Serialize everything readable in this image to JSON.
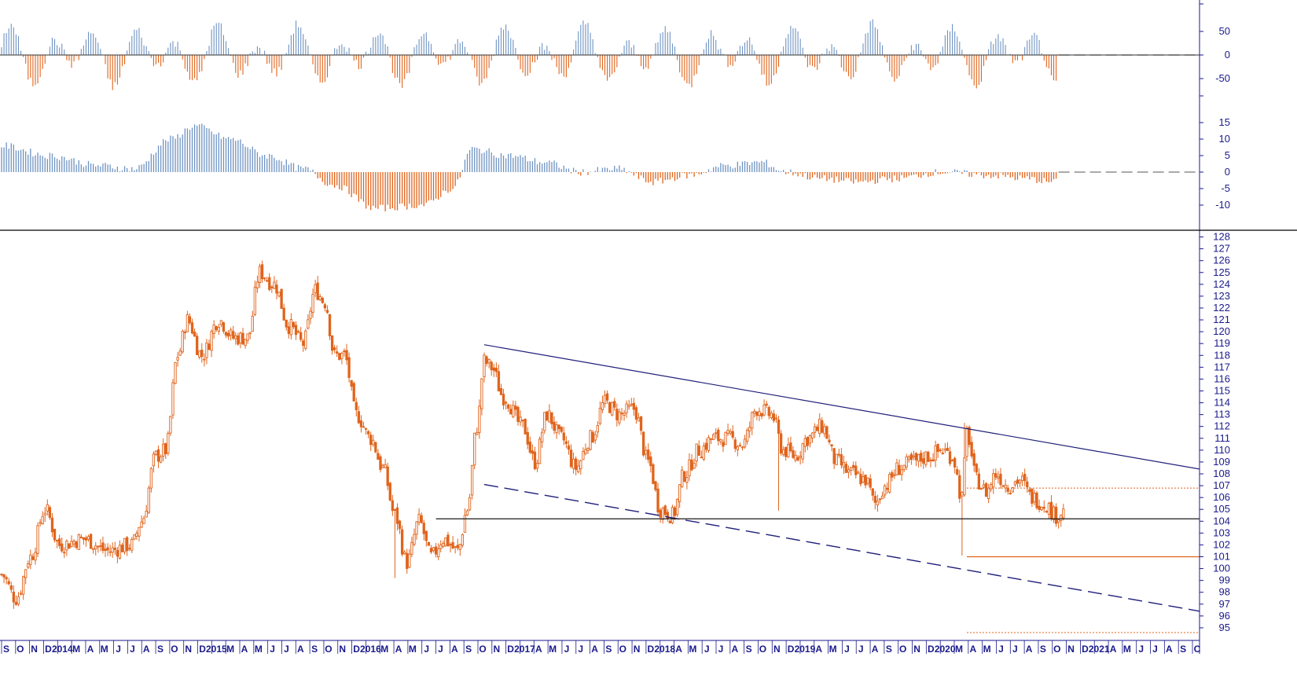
{
  "colors": {
    "up": "#6f93c2",
    "down": "#e0641c",
    "price": "#e0641c",
    "axis": "#1a1a8c",
    "trend": "#1f1f7a",
    "level": "#1a1a1a"
  },
  "chart_data": [
    {
      "type": "bar",
      "panel": "oscillator-top",
      "yticks": [
        50,
        0,
        -50
      ],
      "ylim": [
        -95,
        95
      ],
      "zero_line": "dashed",
      "notes": "two-colour histogram, positive bars blue, negative bars orange"
    },
    {
      "type": "bar",
      "panel": "oscillator-middle",
      "yticks": [
        15,
        10,
        5,
        0,
        -5,
        -10
      ],
      "ylim": [
        -14,
        18
      ],
      "zero_line": "dashed",
      "anchors": [
        {
          "t": 0,
          "v": 8
        },
        {
          "t": 20,
          "v": 5
        },
        {
          "t": 40,
          "v": 2
        },
        {
          "t": 55,
          "v": 1
        },
        {
          "t": 70,
          "v": 10
        },
        {
          "t": 80,
          "v": 14
        },
        {
          "t": 95,
          "v": 10
        },
        {
          "t": 110,
          "v": 5
        },
        {
          "t": 125,
          "v": 1
        },
        {
          "t": 138,
          "v": -4
        },
        {
          "t": 155,
          "v": -11
        },
        {
          "t": 175,
          "v": -10
        },
        {
          "t": 187,
          "v": -5
        },
        {
          "t": 195,
          "v": 7
        },
        {
          "t": 210,
          "v": 5
        },
        {
          "t": 225,
          "v": 3
        },
        {
          "t": 240,
          "v": 0
        },
        {
          "t": 255,
          "v": 1
        },
        {
          "t": 270,
          "v": -3
        },
        {
          "t": 285,
          "v": -1
        },
        {
          "t": 300,
          "v": 2
        },
        {
          "t": 315,
          "v": 3
        },
        {
          "t": 325,
          "v": 0
        },
        {
          "t": 340,
          "v": -2
        },
        {
          "t": 355,
          "v": -3
        },
        {
          "t": 370,
          "v": -2
        },
        {
          "t": 390,
          "v": 0
        },
        {
          "t": 410,
          "v": -1
        },
        {
          "t": 425,
          "v": -2
        },
        {
          "t": 435,
          "v": -3
        }
      ]
    },
    {
      "type": "candlestick",
      "panel": "price",
      "ylim": [
        94.2,
        128.5
      ],
      "yticks": [
        95,
        96,
        97,
        98,
        99,
        100,
        101,
        102,
        103,
        104,
        105,
        106,
        107,
        108,
        109,
        110,
        111,
        112,
        113,
        114,
        115,
        116,
        117,
        118,
        119,
        120,
        121,
        122,
        123,
        124,
        125,
        126,
        127,
        128
      ],
      "x_axis_labels": [
        "S",
        "O",
        "N",
        "D",
        "2014",
        "M",
        "A",
        "M",
        "J",
        "J",
        "A",
        "S",
        "O",
        "N",
        "D",
        "2015",
        "M",
        "A",
        "M",
        "J",
        "J",
        "A",
        "S",
        "O",
        "N",
        "D",
        "2016",
        "M",
        "A",
        "M",
        "J",
        "J",
        "A",
        "S",
        "O",
        "N",
        "D",
        "2017",
        "A",
        "M",
        "J",
        "J",
        "A",
        "S",
        "O",
        "N",
        "D",
        "2018",
        "A",
        "M",
        "J",
        "J",
        "A",
        "S",
        "O",
        "N",
        "D",
        "2019",
        "A",
        "M",
        "J",
        "J",
        "A",
        "S",
        "O",
        "N",
        "D",
        "2020",
        "M",
        "A",
        "M",
        "J",
        "J",
        "A",
        "S",
        "O",
        "N",
        "D",
        "2021",
        "A",
        "M",
        "J",
        "J",
        "A",
        "S",
        "C"
      ],
      "anchors": [
        {
          "t": 0,
          "v": 99.5
        },
        {
          "t": 6,
          "v": 97.5
        },
        {
          "t": 12,
          "v": 101
        },
        {
          "t": 18,
          "v": 105
        },
        {
          "t": 24,
          "v": 102
        },
        {
          "t": 34,
          "v": 102.5
        },
        {
          "t": 44,
          "v": 101.5
        },
        {
          "t": 54,
          "v": 102
        },
        {
          "t": 58,
          "v": 104
        },
        {
          "t": 64,
          "v": 109.5
        },
        {
          "t": 68,
          "v": 110
        },
        {
          "t": 73,
          "v": 118
        },
        {
          "t": 77,
          "v": 121
        },
        {
          "t": 83,
          "v": 118
        },
        {
          "t": 90,
          "v": 121
        },
        {
          "t": 96,
          "v": 119.5
        },
        {
          "t": 102,
          "v": 119.5
        },
        {
          "t": 107,
          "v": 125
        },
        {
          "t": 113,
          "v": 124
        },
        {
          "t": 119,
          "v": 120.5
        },
        {
          "t": 125,
          "v": 119
        },
        {
          "t": 130,
          "v": 123.5
        },
        {
          "t": 134,
          "v": 122.5
        },
        {
          "t": 138,
          "v": 118
        },
        {
          "t": 142,
          "v": 118
        },
        {
          "t": 147,
          "v": 113
        },
        {
          "t": 153,
          "v": 111
        },
        {
          "t": 158,
          "v": 108.5
        },
        {
          "t": 163,
          "v": 104.5
        },
        {
          "t": 168,
          "v": 100.5
        },
        {
          "t": 173,
          "v": 104
        },
        {
          "t": 178,
          "v": 101
        },
        {
          "t": 183,
          "v": 102.5
        },
        {
          "t": 189,
          "v": 101.5
        },
        {
          "t": 193,
          "v": 105
        },
        {
          "t": 197,
          "v": 112
        },
        {
          "t": 200,
          "v": 117.5
        },
        {
          "t": 203,
          "v": 117
        },
        {
          "t": 208,
          "v": 114.5
        },
        {
          "t": 216,
          "v": 112
        },
        {
          "t": 221,
          "v": 109
        },
        {
          "t": 226,
          "v": 113
        },
        {
          "t": 232,
          "v": 111
        },
        {
          "t": 238,
          "v": 108.5
        },
        {
          "t": 244,
          "v": 111
        },
        {
          "t": 250,
          "v": 114
        },
        {
          "t": 256,
          "v": 113
        },
        {
          "t": 262,
          "v": 113.5
        },
        {
          "t": 268,
          "v": 109
        },
        {
          "t": 273,
          "v": 105
        },
        {
          "t": 278,
          "v": 104.5
        },
        {
          "t": 283,
          "v": 108
        },
        {
          "t": 289,
          "v": 110
        },
        {
          "t": 295,
          "v": 111
        },
        {
          "t": 301,
          "v": 111
        },
        {
          "t": 307,
          "v": 110.5
        },
        {
          "t": 313,
          "v": 113.5
        },
        {
          "t": 319,
          "v": 113
        },
        {
          "t": 324,
          "v": 110
        },
        {
          "t": 329,
          "v": 109.5
        },
        {
          "t": 334,
          "v": 111
        },
        {
          "t": 340,
          "v": 112
        },
        {
          "t": 346,
          "v": 109
        },
        {
          "t": 352,
          "v": 108
        },
        {
          "t": 358,
          "v": 107.5
        },
        {
          "t": 362,
          "v": 105.5
        },
        {
          "t": 366,
          "v": 107
        },
        {
          "t": 372,
          "v": 108.5
        },
        {
          "t": 378,
          "v": 109
        },
        {
          "t": 384,
          "v": 109.5
        },
        {
          "t": 390,
          "v": 110
        },
        {
          "t": 394,
          "v": 109.5
        },
        {
          "t": 398,
          "v": 106
        },
        {
          "t": 400,
          "v": 111.5
        },
        {
          "t": 404,
          "v": 107.5
        },
        {
          "t": 408,
          "v": 106.5
        },
        {
          "t": 412,
          "v": 108
        },
        {
          "t": 417,
          "v": 107
        },
        {
          "t": 422,
          "v": 107.5
        },
        {
          "t": 427,
          "v": 106
        },
        {
          "t": 432,
          "v": 105.5
        },
        {
          "t": 437,
          "v": 104.5
        },
        {
          "t": 440,
          "v": 104.8
        }
      ],
      "lines": [
        {
          "kind": "resistance-trend",
          "style": "solid",
          "from": [
            200,
            118.9
          ],
          "to": [
            560,
            108.4
          ]
        },
        {
          "kind": "support-trend",
          "style": "dashed",
          "from": [
            200,
            107.1
          ],
          "to": [
            560,
            96.4
          ]
        },
        {
          "kind": "horizontal-level",
          "style": "solid",
          "from": [
            180,
            104.2
          ],
          "to": [
            560,
            104.2
          ]
        },
        {
          "kind": "horizontal-level",
          "style": "solid-orange",
          "from": [
            400,
            101.0
          ],
          "to": [
            560,
            101.0
          ]
        },
        {
          "kind": "horizontal-level",
          "style": "dotted-orange",
          "from": [
            400,
            106.8
          ],
          "to": [
            560,
            106.8
          ]
        },
        {
          "kind": "horizontal-level",
          "style": "dotted-orange",
          "from": [
            400,
            94.6
          ],
          "to": [
            560,
            94.6
          ]
        }
      ]
    }
  ]
}
